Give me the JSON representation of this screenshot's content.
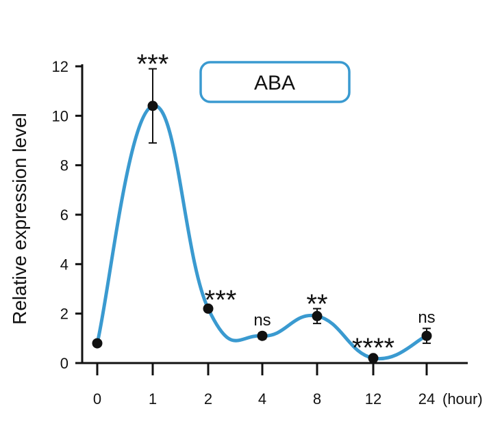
{
  "chart_data": {
    "type": "line",
    "title": "ABA",
    "ylabel": "Relative expression level",
    "xlabel": "",
    "x_unit": "(hour)",
    "categories": [
      "0",
      "1",
      "2",
      "4",
      "8",
      "12",
      "24"
    ],
    "values": [
      0.8,
      10.4,
      2.2,
      1.1,
      1.9,
      0.2,
      1.1
    ],
    "error": [
      0.0,
      1.5,
      0.1,
      0.12,
      0.3,
      0.05,
      0.3
    ],
    "significance": [
      "",
      "***",
      "***",
      "ns",
      "**",
      "****",
      "ns"
    ],
    "ylim": [
      0,
      12
    ],
    "yticks": [
      0,
      2,
      4,
      6,
      8,
      10,
      12
    ],
    "line_color": "#3a9ad0",
    "marker_color": "#111111",
    "grid": false,
    "legend_position": "top-center"
  }
}
